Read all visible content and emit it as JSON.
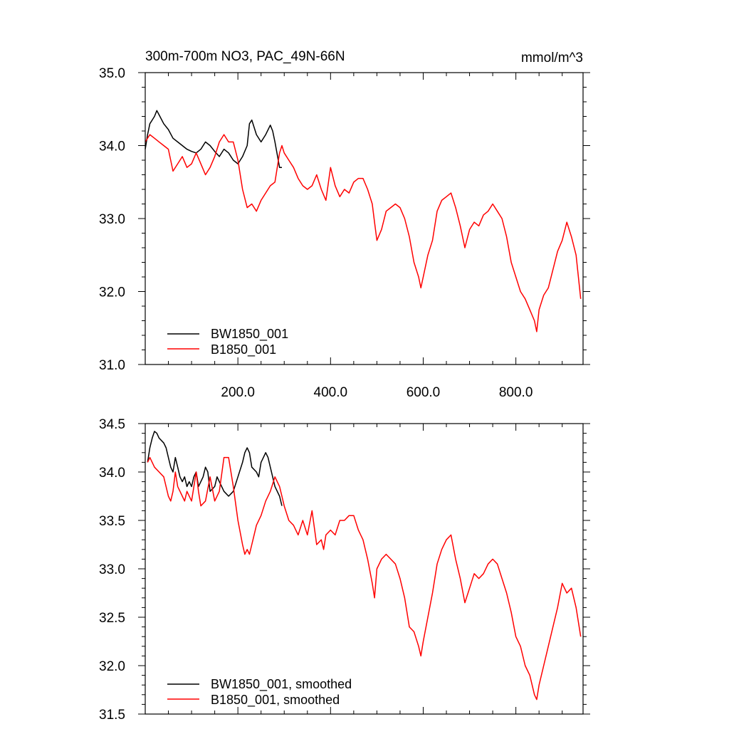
{
  "chart_data": [
    {
      "type": "line",
      "title": "300m-700m NO3, PAC_49N-66N",
      "units": "mmol/m^3",
      "xlim": [
        0,
        945
      ],
      "ylim": [
        31.0,
        35.0
      ],
      "grid": false,
      "legend_position": "bottom-left",
      "x_ticks": [
        200,
        400,
        600,
        800
      ],
      "x_tick_labels": [
        "200.0",
        "400.0",
        "600.0",
        "800.0"
      ],
      "y_ticks": [
        31.0,
        32.0,
        33.0,
        34.0,
        35.0
      ],
      "y_tick_labels": [
        "31.0",
        "32.0",
        "33.0",
        "34.0",
        "35.0"
      ],
      "series": [
        {
          "name": "BW1850_001",
          "color": "#000000",
          "x": [
            0,
            5,
            10,
            15,
            20,
            25,
            30,
            40,
            50,
            60,
            70,
            80,
            90,
            100,
            110,
            120,
            130,
            140,
            150,
            160,
            170,
            180,
            190,
            200,
            210,
            220,
            225,
            230,
            240,
            250,
            260,
            270,
            275,
            280,
            290,
            295
          ],
          "y": [
            33.95,
            34.15,
            34.3,
            34.35,
            34.4,
            34.48,
            34.42,
            34.3,
            34.22,
            34.1,
            34.05,
            34.0,
            33.95,
            33.92,
            33.9,
            33.95,
            34.05,
            34.0,
            33.92,
            33.85,
            33.95,
            33.9,
            33.8,
            33.75,
            33.85,
            34.0,
            34.3,
            34.35,
            34.15,
            34.05,
            34.15,
            34.28,
            34.2,
            34.05,
            33.7,
            33.7
          ]
        },
        {
          "name": "B1850_001",
          "color": "#ff0000",
          "x": [
            0,
            10,
            20,
            30,
            40,
            50,
            60,
            70,
            80,
            90,
            100,
            110,
            120,
            130,
            140,
            150,
            160,
            170,
            180,
            190,
            200,
            210,
            220,
            230,
            240,
            250,
            260,
            270,
            280,
            290,
            295,
            300,
            310,
            320,
            330,
            340,
            350,
            360,
            370,
            380,
            390,
            400,
            410,
            420,
            430,
            440,
            450,
            460,
            470,
            480,
            490,
            495,
            500,
            510,
            520,
            530,
            540,
            550,
            560,
            570,
            580,
            590,
            595,
            600,
            610,
            620,
            630,
            640,
            650,
            660,
            670,
            680,
            690,
            700,
            710,
            720,
            730,
            740,
            750,
            760,
            770,
            780,
            790,
            800,
            810,
            820,
            830,
            840,
            845,
            850,
            860,
            870,
            880,
            890,
            900,
            910,
            920,
            930,
            940
          ],
          "y": [
            34.05,
            34.15,
            34.1,
            34.05,
            34.0,
            33.95,
            33.65,
            33.75,
            33.85,
            33.7,
            33.75,
            33.9,
            33.75,
            33.6,
            33.7,
            33.85,
            34.05,
            34.15,
            34.05,
            34.05,
            33.8,
            33.4,
            33.15,
            33.2,
            33.1,
            33.25,
            33.35,
            33.45,
            33.5,
            33.9,
            34.0,
            33.9,
            33.8,
            33.7,
            33.55,
            33.45,
            33.4,
            33.45,
            33.6,
            33.4,
            33.25,
            33.7,
            33.45,
            33.3,
            33.4,
            33.35,
            33.5,
            33.55,
            33.55,
            33.4,
            33.2,
            32.95,
            32.7,
            32.85,
            33.1,
            33.15,
            33.2,
            33.15,
            33.0,
            32.75,
            32.4,
            32.2,
            32.05,
            32.2,
            32.5,
            32.7,
            33.1,
            33.25,
            33.3,
            33.35,
            33.15,
            32.9,
            32.6,
            32.85,
            32.95,
            32.9,
            33.05,
            33.1,
            33.2,
            33.1,
            33.0,
            32.75,
            32.4,
            32.2,
            32.0,
            31.9,
            31.75,
            31.6,
            31.45,
            31.75,
            31.95,
            32.05,
            32.3,
            32.55,
            32.7,
            32.95,
            32.75,
            32.5,
            31.9
          ]
        }
      ]
    },
    {
      "type": "line",
      "title": "",
      "xlim": [
        0,
        945
      ],
      "ylim": [
        31.5,
        34.5
      ],
      "grid": false,
      "legend_position": "bottom-left",
      "x_ticks": [
        200,
        400,
        600,
        800
      ],
      "x_tick_labels": [],
      "y_ticks": [
        31.5,
        32.0,
        32.5,
        33.0,
        33.5,
        34.0,
        34.5
      ],
      "y_tick_labels": [
        "31.5",
        "32.0",
        "32.5",
        "33.0",
        "33.5",
        "34.0",
        "34.5"
      ],
      "series": [
        {
          "name": "BW1850_001, smoothed",
          "color": "#000000",
          "x": [
            5,
            10,
            15,
            20,
            25,
            30,
            40,
            45,
            50,
            55,
            60,
            65,
            70,
            75,
            80,
            85,
            90,
            95,
            100,
            105,
            110,
            115,
            120,
            125,
            130,
            135,
            140,
            150,
            155,
            160,
            170,
            180,
            190,
            200,
            210,
            215,
            220,
            225,
            230,
            240,
            245,
            250,
            255,
            260,
            265,
            270,
            280,
            290,
            295
          ],
          "y": [
            34.1,
            34.25,
            34.35,
            34.42,
            34.4,
            34.35,
            34.3,
            34.25,
            34.15,
            34.05,
            34.0,
            34.15,
            34.05,
            33.95,
            33.9,
            33.95,
            33.85,
            33.9,
            33.85,
            33.95,
            34.0,
            33.85,
            33.9,
            33.95,
            34.05,
            34.0,
            33.8,
            33.85,
            33.95,
            33.9,
            33.8,
            33.75,
            33.8,
            33.95,
            34.1,
            34.2,
            34.25,
            34.2,
            34.05,
            34.0,
            33.95,
            34.1,
            34.15,
            34.2,
            34.15,
            34.05,
            33.85,
            33.75,
            33.65
          ]
        },
        {
          "name": "B1850_001, smoothed",
          "color": "#ff0000",
          "x": [
            5,
            10,
            20,
            30,
            40,
            50,
            55,
            60,
            65,
            70,
            80,
            85,
            90,
            100,
            110,
            115,
            120,
            130,
            140,
            150,
            160,
            170,
            180,
            190,
            200,
            210,
            215,
            220,
            225,
            230,
            240,
            250,
            260,
            270,
            280,
            290,
            295,
            300,
            310,
            320,
            330,
            340,
            350,
            360,
            370,
            380,
            385,
            390,
            400,
            410,
            420,
            430,
            440,
            450,
            460,
            470,
            480,
            490,
            495,
            500,
            510,
            520,
            530,
            540,
            550,
            560,
            570,
            580,
            590,
            595,
            600,
            610,
            620,
            630,
            640,
            650,
            660,
            670,
            680,
            690,
            700,
            710,
            720,
            730,
            740,
            750,
            760,
            770,
            780,
            790,
            800,
            810,
            820,
            830,
            840,
            845,
            850,
            860,
            870,
            880,
            890,
            900,
            910,
            920,
            930,
            940
          ],
          "y": [
            34.1,
            34.15,
            34.05,
            34.0,
            33.95,
            33.75,
            33.7,
            33.8,
            34.0,
            33.85,
            33.75,
            33.7,
            33.8,
            33.7,
            34.0,
            33.8,
            33.65,
            33.7,
            33.95,
            33.7,
            33.8,
            34.15,
            34.15,
            33.85,
            33.5,
            33.25,
            33.15,
            33.2,
            33.15,
            33.25,
            33.45,
            33.55,
            33.7,
            33.8,
            33.95,
            33.85,
            33.75,
            33.65,
            33.5,
            33.45,
            33.35,
            33.5,
            33.35,
            33.6,
            33.25,
            33.3,
            33.2,
            33.35,
            33.4,
            33.35,
            33.5,
            33.5,
            33.55,
            33.55,
            33.4,
            33.3,
            33.1,
            32.85,
            32.7,
            33.0,
            33.1,
            33.15,
            33.1,
            33.05,
            32.9,
            32.7,
            32.4,
            32.35,
            32.2,
            32.1,
            32.25,
            32.5,
            32.75,
            33.05,
            33.2,
            33.3,
            33.35,
            33.1,
            32.9,
            32.65,
            32.8,
            32.95,
            32.9,
            32.95,
            33.05,
            33.1,
            33.05,
            32.9,
            32.75,
            32.55,
            32.3,
            32.2,
            32.0,
            31.9,
            31.7,
            31.65,
            31.8,
            32.0,
            32.2,
            32.4,
            32.6,
            32.85,
            32.75,
            32.8,
            32.6,
            32.3
          ]
        }
      ]
    }
  ]
}
